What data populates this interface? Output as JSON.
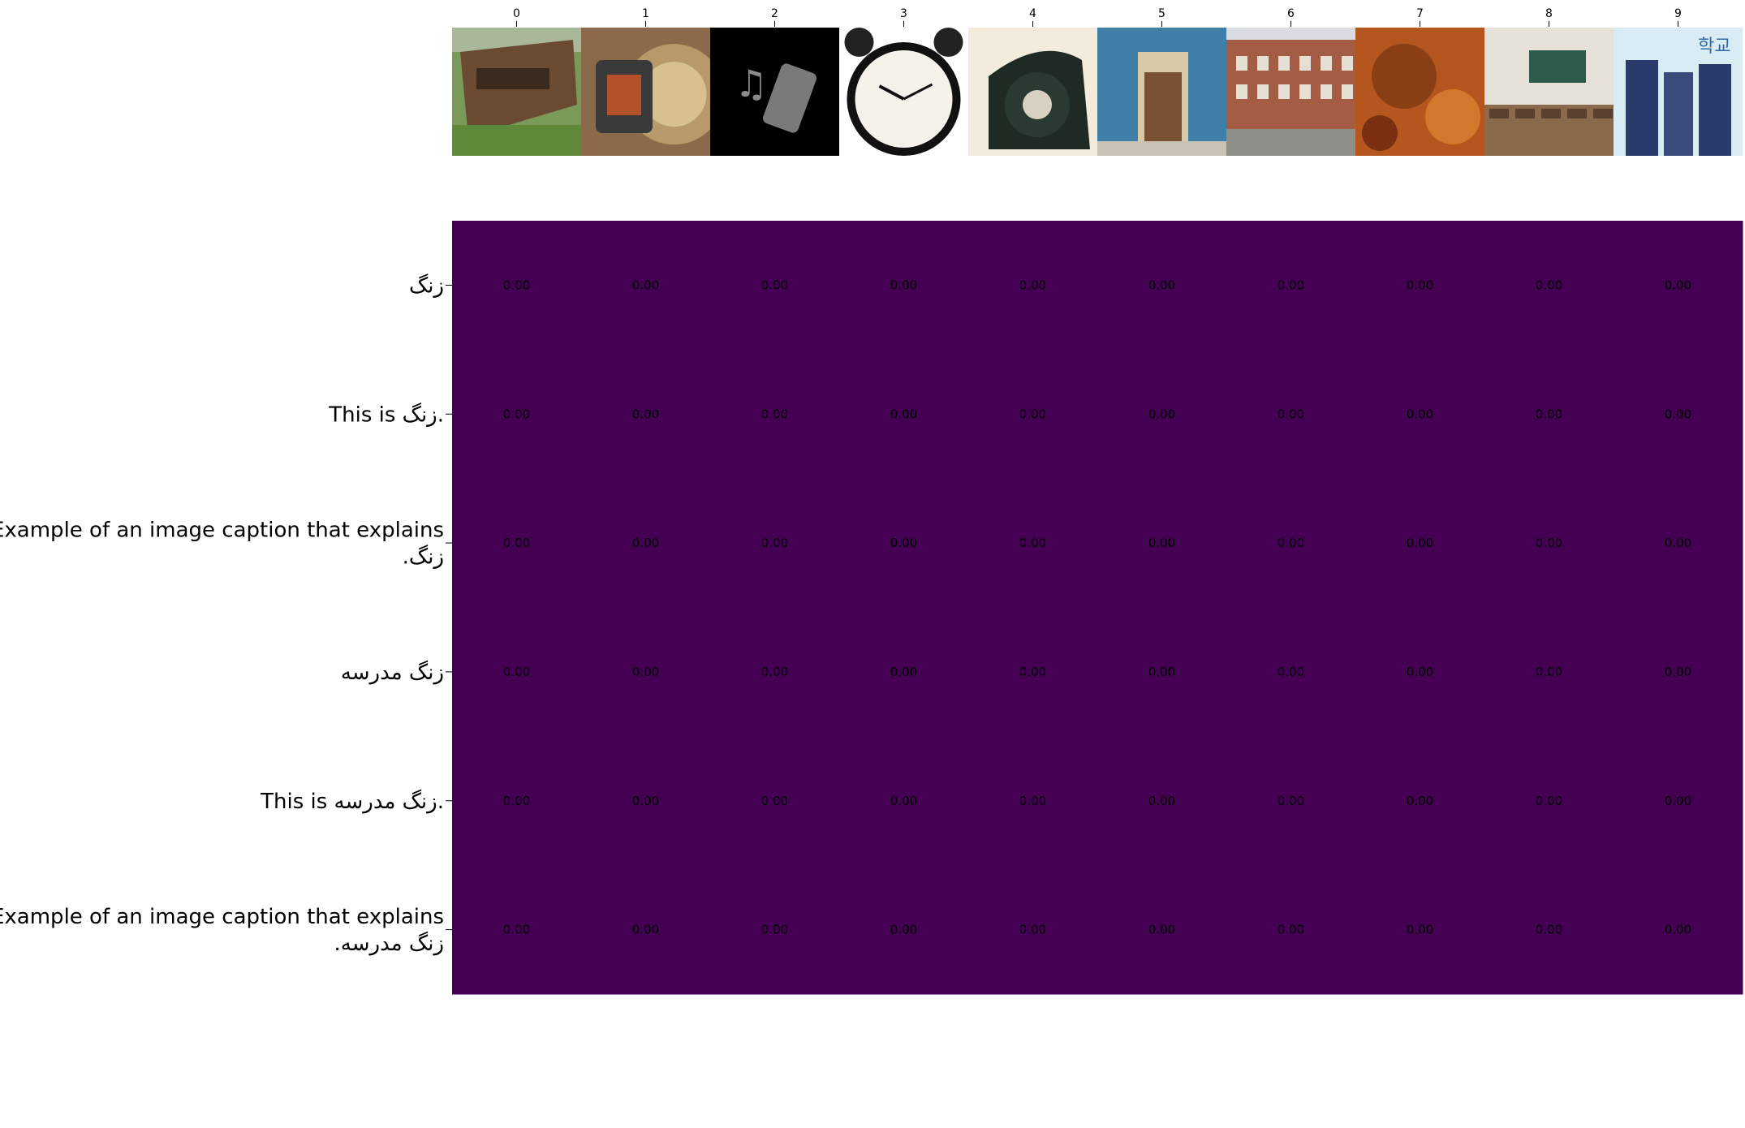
{
  "chart_data": {
    "type": "heatmap",
    "title": "",
    "xlabel": "",
    "ylabel": "",
    "x_categories": [
      "0",
      "1",
      "2",
      "3",
      "4",
      "5",
      "6",
      "7",
      "8",
      "9"
    ],
    "x_thumbnails": [
      "rusty-abandoned-railway-carriage",
      "open-electric-bell-mechanism",
      "music-notes-phone-icon",
      "analog-alarm-clock",
      "black-rotary-telephone",
      "tiled-mosque-doorway",
      "brick-school-building",
      "rusted-orange-surface",
      "empty-classroom",
      "korean-school-drama-poster"
    ],
    "thumbnail_text": {
      "9": "학교"
    },
    "y_categories": [
      [
        "زنگ"
      ],
      [
        "This is زنگ."
      ],
      [
        "Example of an image caption that explains",
        "زنگ."
      ],
      [
        "زنگ مدرسه"
      ],
      [
        "This is زنگ مدرسه."
      ],
      [
        "Example of an image caption that explains",
        "زنگ مدرسه."
      ]
    ],
    "values": [
      [
        0.0,
        0.0,
        0.0,
        0.0,
        0.0,
        0.0,
        0.0,
        0.0,
        0.0,
        0.0
      ],
      [
        0.0,
        0.0,
        0.0,
        0.0,
        0.0,
        0.0,
        0.0,
        0.0,
        0.0,
        0.0
      ],
      [
        0.0,
        0.0,
        0.0,
        0.0,
        0.0,
        0.0,
        0.0,
        0.0,
        0.0,
        0.0
      ],
      [
        0.0,
        0.0,
        0.0,
        0.0,
        0.0,
        0.0,
        0.0,
        0.0,
        0.0,
        0.0
      ],
      [
        0.0,
        0.0,
        0.0,
        0.0,
        0.0,
        0.0,
        0.0,
        0.0,
        0.0,
        0.0
      ],
      [
        0.0,
        0.0,
        0.0,
        0.0,
        0.0,
        0.0,
        0.0,
        0.0,
        0.0,
        0.0
      ]
    ],
    "value_format": "0.00",
    "colormap": "viridis",
    "cell_color": "#440154",
    "x_tick_position": "top",
    "grid": false,
    "legend": "none"
  }
}
